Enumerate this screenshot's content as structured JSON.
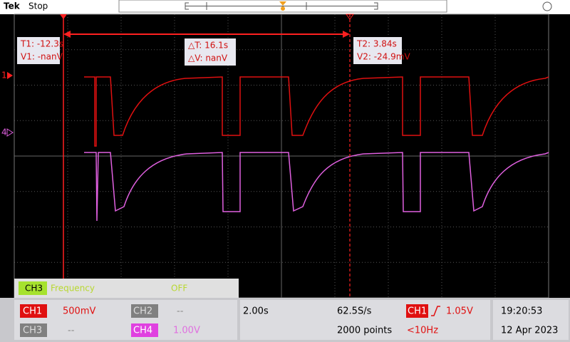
{
  "header": {
    "logo": "Tek",
    "status": "Stop"
  },
  "cursors": {
    "t1": "T1: -12.3s",
    "v1": "V1: -nanV",
    "delta_t": "△T: 16.1s",
    "delta_v": "△V: nanV",
    "t2": "T2: 3.84s",
    "v2": "V2: -24.9mV"
  },
  "markers": {
    "ch1": "1",
    "ch4": "4"
  },
  "measurement": {
    "channel": "CH3",
    "name": "Frequency",
    "value": "OFF"
  },
  "footer": {
    "ch1": {
      "label": "CH1",
      "scale": "500mV"
    },
    "ch2": {
      "label": "CH2",
      "scale": "--"
    },
    "ch3": {
      "label": "CH3",
      "scale": "--"
    },
    "ch4": {
      "label": "CH4",
      "scale": "1.00V"
    },
    "timebase": "2.00s",
    "sample_rate": "62.5S/s",
    "record_length": "2000 points",
    "trigger": {
      "source": "CH1",
      "level": "1.05V",
      "frequency": "<10Hz"
    },
    "time": "19:20:53",
    "date": "12 Apr 2023"
  }
}
